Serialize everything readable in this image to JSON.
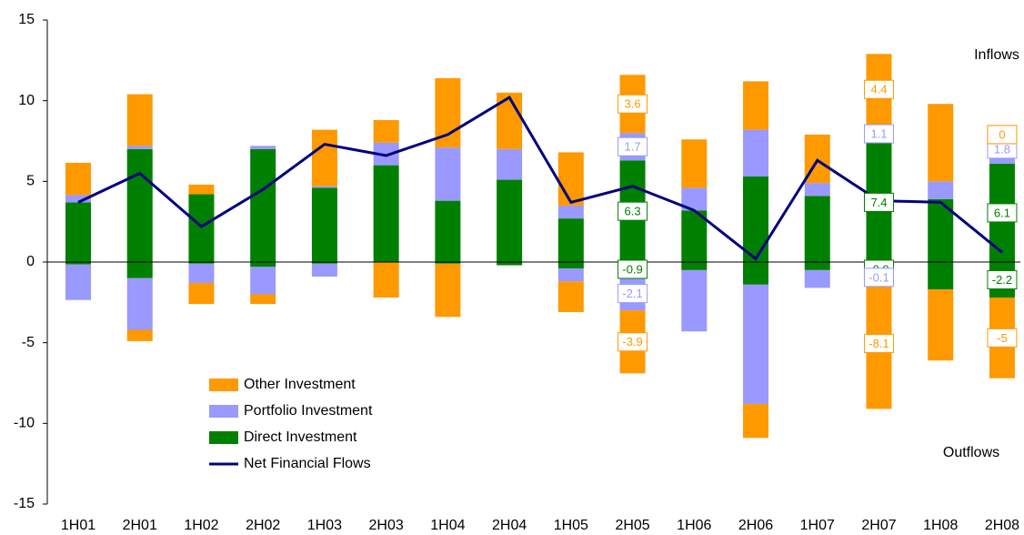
{
  "chart_data": {
    "type": "stacked_bar_line",
    "categories": [
      "1H01",
      "2H01",
      "1H02",
      "2H02",
      "1H03",
      "2H03",
      "1H04",
      "2H04",
      "1H05",
      "2H05",
      "1H06",
      "2H06",
      "1H07",
      "2H07",
      "1H08",
      "2H08"
    ],
    "series": [
      {
        "name": "Direct Investment",
        "color": "#008000",
        "values": [
          3.7,
          7.0,
          4.2,
          7.0,
          4.6,
          6.0,
          3.8,
          5.1,
          2.7,
          6.3,
          3.2,
          5.3,
          4.1,
          7.4,
          3.9,
          6.1
        ],
        "outflow_values": [
          -0.15,
          -1.0,
          -0.1,
          -0.3,
          -0.1,
          0,
          -0.1,
          -0.2,
          -0.4,
          -0.9,
          -0.5,
          -1.4,
          -0.5,
          -0.9,
          -1.7,
          -2.2
        ]
      },
      {
        "name": "Portfolio Investment",
        "color": "#9999ff",
        "values": [
          0.45,
          0.2,
          0,
          0.2,
          0.1,
          1.4,
          3.3,
          1.9,
          0.8,
          1.7,
          1.4,
          2.9,
          0.8,
          1.1,
          1.1,
          1.8
        ],
        "outflow_values": [
          -2.2,
          -3.2,
          -1.2,
          -1.7,
          -0.8,
          0,
          0,
          0,
          -0.8,
          -2.1,
          -3.8,
          -7.4,
          -1.1,
          -0.1,
          0,
          0
        ]
      },
      {
        "name": "Other Investment",
        "color": "#ff9900",
        "values": [
          2.0,
          3.2,
          0.6,
          0,
          3.5,
          1.4,
          4.3,
          3.5,
          3.3,
          3.6,
          3.0,
          3.0,
          3.0,
          4.4,
          4.8,
          0
        ],
        "outflow_values": [
          0,
          -0.7,
          -1.3,
          -0.6,
          0,
          -2.2,
          -3.3,
          0,
          -1.9,
          -3.9,
          0,
          -2.1,
          0,
          -8.1,
          -4.4,
          -5.0
        ]
      },
      {
        "name": "Net Financial Flows",
        "color": "#000080",
        "type": "line",
        "values": [
          3.7,
          5.5,
          2.2,
          4.5,
          7.3,
          6.6,
          7.9,
          10.2,
          3.7,
          4.7,
          3.2,
          0.2,
          6.3,
          3.8,
          3.7,
          0.6
        ]
      }
    ],
    "labeled": [
      9,
      13,
      15
    ],
    "legend_order": [
      2,
      1,
      0,
      3
    ],
    "annotations": [
      "Inflows",
      "Outflows"
    ],
    "ylim": [
      -15,
      15
    ],
    "yticks": [
      -15,
      -10,
      -5,
      0,
      5,
      10,
      15
    ],
    "grid": false
  }
}
